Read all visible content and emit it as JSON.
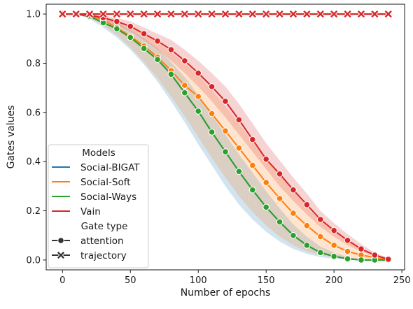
{
  "chart_data": {
    "type": "line",
    "xlabel": "Number of epochs",
    "ylabel": "Gates values",
    "xlim": [
      -12,
      252
    ],
    "ylim": [
      -0.04,
      1.04
    ],
    "xticks": [
      "0",
      "50",
      "100",
      "150",
      "200",
      "250"
    ],
    "yticks": [
      "0.0",
      "0.2",
      "0.4",
      "0.6",
      "0.8",
      "1.0"
    ],
    "grid": false,
    "legend_position": "lower-left",
    "legend": {
      "models_title": "Models",
      "gate_title": "Gate type",
      "gate_types": [
        "attention",
        "trajectory"
      ]
    },
    "x": [
      0,
      10,
      20,
      30,
      40,
      50,
      60,
      70,
      80,
      90,
      100,
      110,
      120,
      130,
      140,
      150,
      160,
      170,
      180,
      190,
      200,
      210,
      220,
      230,
      240
    ],
    "series": [
      {
        "name": "Social-BIGAT",
        "color": "#1f77b4",
        "attention": [
          1.0,
          1.0,
          0.99,
          0.965,
          0.94,
          0.905,
          0.86,
          0.815,
          0.755,
          0.68,
          0.605,
          0.52,
          0.44,
          0.36,
          0.285,
          0.215,
          0.155,
          0.1,
          0.06,
          0.03,
          0.015,
          0.005,
          0.0,
          0.0,
          0.0
        ],
        "band_low": [
          1.0,
          1.0,
          0.98,
          0.945,
          0.905,
          0.855,
          0.795,
          0.725,
          0.645,
          0.56,
          0.47,
          0.385,
          0.3,
          0.225,
          0.165,
          0.115,
          0.075,
          0.045,
          0.025,
          0.012,
          0.005,
          0.002,
          0.0,
          0.0,
          0.0
        ],
        "band_high": [
          1.0,
          1.0,
          1.0,
          0.985,
          0.965,
          0.935,
          0.9,
          0.86,
          0.805,
          0.745,
          0.67,
          0.59,
          0.51,
          0.43,
          0.355,
          0.28,
          0.21,
          0.145,
          0.095,
          0.055,
          0.03,
          0.012,
          0.004,
          0.001,
          0.0
        ],
        "trajectory": [
          1.0,
          1.0,
          1.0,
          1.0,
          1.0,
          1.0,
          1.0,
          1.0,
          1.0,
          1.0,
          1.0,
          1.0,
          1.0,
          1.0,
          1.0,
          1.0,
          1.0,
          1.0,
          1.0,
          1.0,
          1.0,
          1.0,
          1.0,
          1.0,
          1.0
        ]
      },
      {
        "name": "Social-Soft",
        "color": "#ff7f0e",
        "attention": [
          1.0,
          1.0,
          0.995,
          0.975,
          0.945,
          0.91,
          0.87,
          0.825,
          0.77,
          0.71,
          0.665,
          0.595,
          0.525,
          0.455,
          0.385,
          0.315,
          0.25,
          0.19,
          0.14,
          0.095,
          0.06,
          0.035,
          0.02,
          0.01,
          0.0
        ],
        "band_low": [
          1.0,
          1.0,
          0.985,
          0.955,
          0.915,
          0.865,
          0.805,
          0.74,
          0.665,
          0.585,
          0.5,
          0.415,
          0.335,
          0.26,
          0.195,
          0.14,
          0.095,
          0.06,
          0.035,
          0.02,
          0.01,
          0.005,
          0.002,
          0.0,
          0.0
        ],
        "band_high": [
          1.0,
          1.0,
          1.0,
          0.99,
          0.97,
          0.945,
          0.92,
          0.885,
          0.845,
          0.8,
          0.75,
          0.69,
          0.625,
          0.555,
          0.48,
          0.41,
          0.345,
          0.28,
          0.215,
          0.16,
          0.115,
          0.075,
          0.045,
          0.02,
          0.005
        ],
        "trajectory": [
          1.0,
          1.0,
          1.0,
          1.0,
          1.0,
          1.0,
          1.0,
          1.0,
          1.0,
          1.0,
          1.0,
          1.0,
          1.0,
          1.0,
          1.0,
          1.0,
          1.0,
          1.0,
          1.0,
          1.0,
          1.0,
          1.0,
          1.0,
          1.0,
          1.0
        ]
      },
      {
        "name": "Social-Ways",
        "color": "#2ca02c",
        "attention": [
          1.0,
          1.0,
          0.99,
          0.965,
          0.94,
          0.905,
          0.86,
          0.815,
          0.755,
          0.68,
          0.605,
          0.52,
          0.44,
          0.36,
          0.285,
          0.215,
          0.155,
          0.1,
          0.06,
          0.03,
          0.015,
          0.005,
          0.0,
          0.0,
          0.0
        ],
        "trajectory": [
          1.0,
          1.0,
          1.0,
          1.0,
          1.0,
          1.0,
          1.0,
          1.0,
          1.0,
          1.0,
          1.0,
          1.0,
          1.0,
          1.0,
          1.0,
          1.0,
          1.0,
          1.0,
          1.0,
          1.0,
          1.0,
          1.0,
          1.0,
          1.0,
          1.0
        ]
      },
      {
        "name": "Vain",
        "color": "#d62728",
        "attention": [
          1.0,
          1.0,
          0.995,
          0.985,
          0.97,
          0.95,
          0.92,
          0.89,
          0.855,
          0.81,
          0.76,
          0.705,
          0.645,
          0.57,
          0.49,
          0.41,
          0.35,
          0.285,
          0.225,
          0.165,
          0.12,
          0.08,
          0.045,
          0.02,
          0.003
        ],
        "band_low": [
          1.0,
          1.0,
          0.99,
          0.975,
          0.955,
          0.93,
          0.895,
          0.855,
          0.81,
          0.76,
          0.705,
          0.645,
          0.58,
          0.51,
          0.44,
          0.37,
          0.3,
          0.24,
          0.185,
          0.135,
          0.095,
          0.06,
          0.035,
          0.015,
          0.0
        ],
        "band_high": [
          1.0,
          1.0,
          1.0,
          0.995,
          0.985,
          0.97,
          0.945,
          0.92,
          0.895,
          0.855,
          0.81,
          0.76,
          0.705,
          0.635,
          0.555,
          0.475,
          0.405,
          0.335,
          0.27,
          0.2,
          0.15,
          0.105,
          0.065,
          0.03,
          0.008
        ],
        "trajectory": [
          1.0,
          1.0,
          1.0,
          1.0,
          1.0,
          1.0,
          1.0,
          1.0,
          1.0,
          1.0,
          1.0,
          1.0,
          1.0,
          1.0,
          1.0,
          1.0,
          1.0,
          1.0,
          1.0,
          1.0,
          1.0,
          1.0,
          1.0,
          1.0,
          1.0
        ]
      }
    ]
  }
}
